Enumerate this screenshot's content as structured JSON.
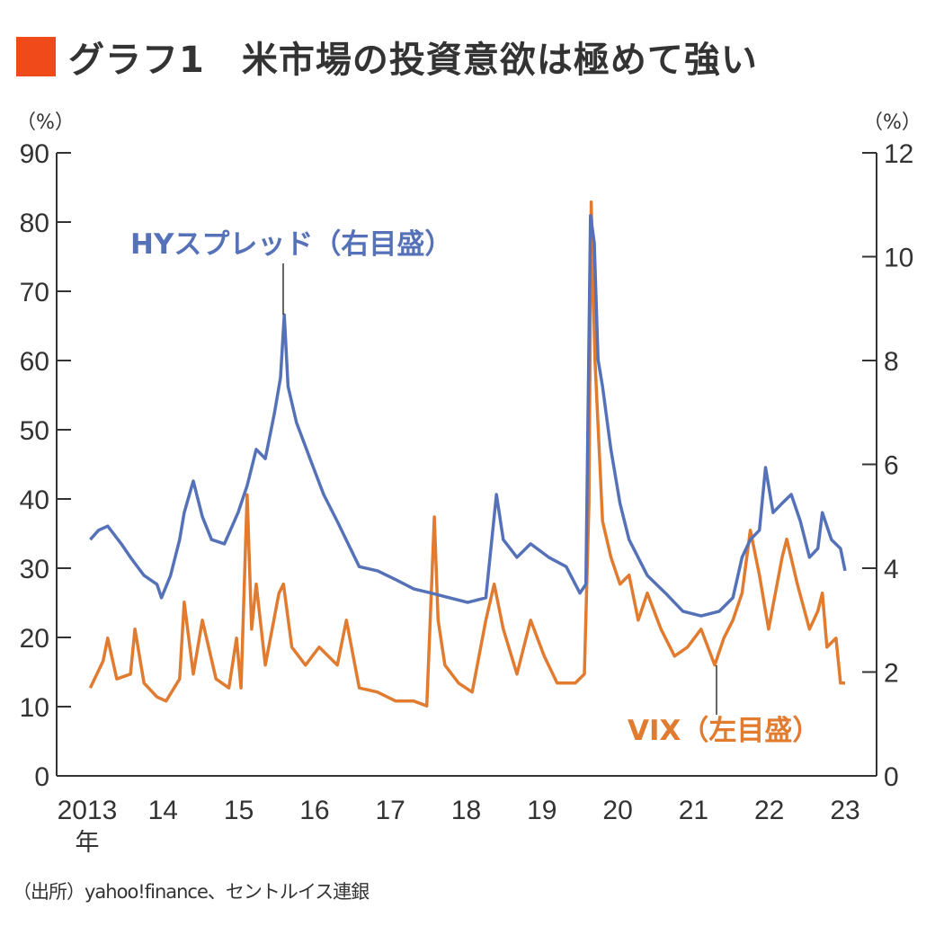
{
  "title": "グラフ1　米市場の投資意欲は極めて強い",
  "source": "（出所）yahoo!finance、セントルイス連銀",
  "colors": {
    "title_marker": "#f04a1a",
    "hy": "#5571b8",
    "vix": "#e07b30",
    "axis": "#333333"
  },
  "chart_data": {
    "type": "line",
    "title": "グラフ1　米市場の投資意欲は極めて強い",
    "x_ticks": [
      {
        "t": 2013,
        "label": "2013"
      },
      {
        "t": 2014,
        "label": "14"
      },
      {
        "t": 2015,
        "label": "15"
      },
      {
        "t": 2016,
        "label": "16"
      },
      {
        "t": 2017,
        "label": "17"
      },
      {
        "t": 2018,
        "label": "18"
      },
      {
        "t": 2019,
        "label": "19"
      },
      {
        "t": 2020,
        "label": "20"
      },
      {
        "t": 2021,
        "label": "21"
      },
      {
        "t": 2022,
        "label": "22"
      },
      {
        "t": 2023,
        "label": "23"
      }
    ],
    "x_unit_label": "年",
    "xlim": [
      2013,
      2023
    ],
    "y_left": {
      "unit": "（%）",
      "lim": [
        0,
        90
      ],
      "ticks": [
        0,
        10,
        20,
        30,
        40,
        50,
        60,
        70,
        80,
        90
      ]
    },
    "y_right": {
      "unit": "（%）",
      "lim": [
        0,
        12
      ],
      "ticks": [
        0,
        2,
        4,
        6,
        8,
        10,
        12
      ]
    },
    "grid": false,
    "series": [
      {
        "name": "HYスプレッド（右目盛）",
        "axis": "right",
        "color": "#5571b8",
        "t": [
          2013.04,
          2013.15,
          2013.27,
          2013.45,
          2013.57,
          2013.75,
          2013.92,
          2013.98,
          2014.1,
          2014.22,
          2014.28,
          2014.4,
          2014.52,
          2014.64,
          2014.81,
          2014.99,
          2015.11,
          2015.23,
          2015.35,
          2015.47,
          2015.55,
          2015.6,
          2015.65,
          2015.76,
          2015.94,
          2016.12,
          2016.3,
          2016.59,
          2016.83,
          2017.07,
          2017.31,
          2017.54,
          2017.78,
          2018.02,
          2018.26,
          2018.4,
          2018.49,
          2018.67,
          2018.85,
          2019.09,
          2019.32,
          2019.5,
          2019.58,
          2019.64,
          2019.69,
          2019.74,
          2019.8,
          2019.91,
          2020.03,
          2020.15,
          2020.39,
          2020.63,
          2020.86,
          2021.1,
          2021.34,
          2021.52,
          2021.64,
          2021.75,
          2021.87,
          2021.95,
          2022.05,
          2022.17,
          2022.29,
          2022.41,
          2022.53,
          2022.64,
          2022.7,
          2022.82,
          2022.94,
          2023.0
        ],
        "values": [
          4.55,
          4.73,
          4.81,
          4.47,
          4.21,
          3.86,
          3.69,
          3.43,
          3.86,
          4.55,
          5.07,
          5.68,
          4.99,
          4.55,
          4.47,
          5.07,
          5.59,
          6.29,
          6.11,
          6.98,
          7.67,
          8.88,
          7.5,
          6.81,
          6.11,
          5.42,
          4.9,
          4.03,
          3.95,
          3.78,
          3.6,
          3.52,
          3.43,
          3.34,
          3.43,
          5.42,
          4.55,
          4.21,
          4.47,
          4.21,
          4.03,
          3.52,
          3.69,
          10.79,
          10.27,
          8.02,
          7.5,
          6.29,
          5.25,
          4.55,
          3.86,
          3.52,
          3.17,
          3.08,
          3.17,
          3.43,
          4.21,
          4.55,
          4.73,
          5.94,
          5.07,
          5.25,
          5.42,
          4.9,
          4.21,
          4.38,
          5.07,
          4.55,
          4.38,
          3.95
        ]
      },
      {
        "name": "VIX（左目盛）",
        "axis": "left",
        "color": "#e07b30",
        "t": [
          2013.04,
          2013.21,
          2013.27,
          2013.39,
          2013.57,
          2013.63,
          2013.75,
          2013.92,
          2014.04,
          2014.22,
          2014.28,
          2014.4,
          2014.52,
          2014.7,
          2014.87,
          2014.97,
          2015.03,
          2015.11,
          2015.17,
          2015.23,
          2015.35,
          2015.53,
          2015.59,
          2015.7,
          2015.88,
          2016.06,
          2016.3,
          2016.42,
          2016.59,
          2016.83,
          2017.07,
          2017.31,
          2017.48,
          2017.58,
          2017.63,
          2017.72,
          2017.9,
          2018.08,
          2018.26,
          2018.37,
          2018.49,
          2018.67,
          2018.85,
          2019.03,
          2019.2,
          2019.44,
          2019.56,
          2019.62,
          2019.65,
          2019.7,
          2019.8,
          2019.91,
          2020.03,
          2020.15,
          2020.27,
          2020.39,
          2020.57,
          2020.75,
          2020.92,
          2021.1,
          2021.28,
          2021.4,
          2021.52,
          2021.64,
          2021.75,
          2021.87,
          2021.99,
          2022.17,
          2022.23,
          2022.37,
          2022.53,
          2022.64,
          2022.7,
          2022.76,
          2022.88,
          2022.94,
          2023.0
        ],
        "values": [
          12.7,
          16.6,
          19.9,
          14.0,
          14.7,
          21.2,
          13.4,
          11.4,
          10.8,
          14.0,
          25.1,
          14.7,
          22.5,
          14.0,
          12.7,
          19.9,
          12.7,
          40.6,
          21.2,
          27.7,
          16.0,
          26.4,
          27.7,
          18.6,
          16.0,
          18.6,
          16.0,
          22.5,
          12.7,
          12.1,
          10.8,
          10.8,
          10.1,
          37.4,
          22.5,
          16.0,
          13.4,
          12.1,
          22.5,
          27.7,
          21.2,
          14.7,
          22.5,
          17.3,
          13.4,
          13.4,
          14.7,
          39.4,
          82.9,
          60.1,
          36.8,
          31.6,
          27.7,
          29.0,
          22.5,
          26.4,
          21.2,
          17.3,
          18.6,
          21.2,
          16.0,
          19.9,
          22.5,
          26.4,
          35.5,
          29.0,
          21.2,
          31.6,
          34.2,
          27.7,
          21.2,
          23.8,
          26.4,
          18.6,
          19.9,
          13.4,
          13.4
        ]
      }
    ],
    "annotations": [
      {
        "text": "HYスプレッド（右目盛）",
        "series": "HY"
      },
      {
        "text": "VIX（左目盛）",
        "series": "VIX"
      }
    ]
  }
}
